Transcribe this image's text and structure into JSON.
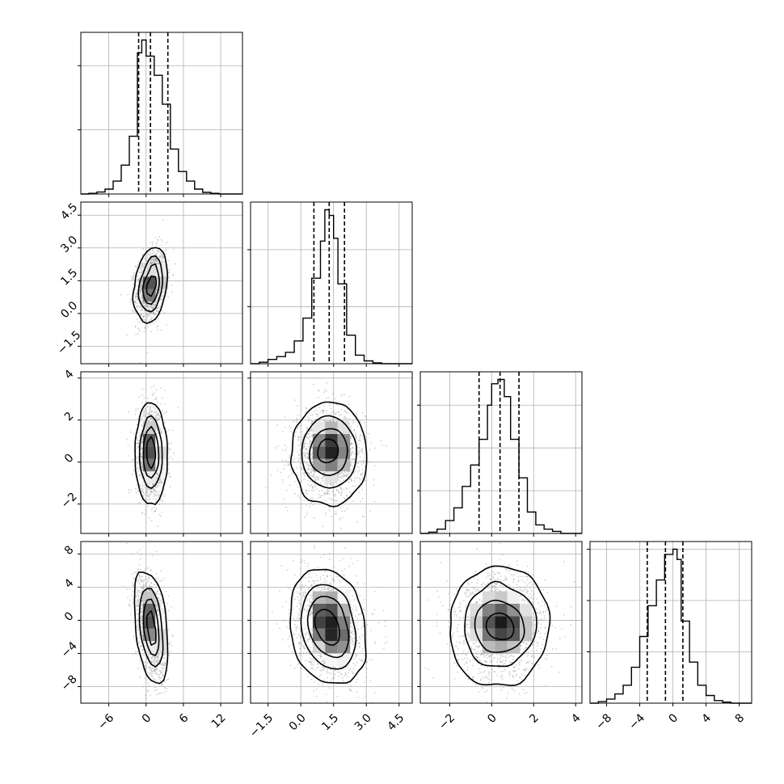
{
  "chart_data": {
    "type": "corner",
    "n_params": 4,
    "grid": true,
    "colors": {
      "line": "#000000",
      "grid": "#b0b0b0",
      "points": "#9a9a9a"
    },
    "params": [
      {
        "index": 0,
        "range": [
          -10.5,
          15.5
        ],
        "ticks": [
          -6,
          0,
          6,
          12
        ],
        "tick_labels": [
          "−6",
          "0",
          "6",
          "12"
        ],
        "quantiles": [
          -1.2,
          0.7,
          3.5
        ],
        "center": [
          0.8,
          1.2
        ],
        "hist_bins": [
          -10.5,
          -9.2,
          -7.9,
          -6.6,
          -5.3,
          -4.0,
          -2.7,
          -1.4,
          -0.7,
          0.0,
          1.3,
          2.6,
          3.9,
          5.2,
          6.5,
          7.8,
          9.1,
          10.4,
          11.7,
          13.0,
          15.5
        ],
        "hist_heights": [
          0,
          0.2,
          0.6,
          1.5,
          4,
          9,
          18,
          44,
          48,
          43,
          37,
          28,
          14,
          7,
          4,
          1.5,
          0.5,
          0.2,
          0,
          0
        ],
        "hist_ticks": [
          20,
          40
        ]
      },
      {
        "index": 1,
        "range": [
          -2.3,
          5.1
        ],
        "ticks": [
          -1.5,
          0.0,
          1.5,
          3.0,
          4.5
        ],
        "tick_labels": [
          "−1.5",
          "0.0",
          "1.5",
          "3.0",
          "4.5"
        ],
        "quantiles": [
          0.6,
          1.3,
          2.0
        ],
        "center": [
          1.3,
          0.8
        ],
        "hist_bins": [
          -2.3,
          -1.9,
          -1.5,
          -1.1,
          -0.7,
          -0.3,
          0.1,
          0.5,
          0.9,
          1.1,
          1.3,
          1.5,
          1.7,
          2.1,
          2.5,
          2.9,
          3.3,
          3.7,
          4.1,
          4.5,
          5.1
        ],
        "hist_heights": [
          0,
          0.5,
          1.5,
          2.5,
          4,
          8,
          16,
          30,
          43,
          54,
          52,
          44,
          28,
          10,
          3,
          1,
          0.3,
          0,
          0,
          0
        ],
        "hist_ticks": [
          20,
          40
        ]
      },
      {
        "index": 2,
        "range": [
          -3.4,
          4.3
        ],
        "ticks": [
          -2,
          0,
          2,
          4
        ],
        "tick_labels": [
          "−2",
          "0",
          "2",
          "4"
        ],
        "quantiles": [
          -0.6,
          0.4,
          1.3
        ],
        "center": [
          0.4,
          1.1
        ],
        "hist_bins": [
          -3.4,
          -3.0,
          -2.6,
          -2.2,
          -1.8,
          -1.4,
          -1.0,
          -0.6,
          -0.2,
          0.0,
          0.3,
          0.6,
          0.9,
          1.3,
          1.7,
          2.1,
          2.5,
          2.9,
          3.3,
          3.7,
          4.3
        ],
        "hist_heights": [
          0,
          0.3,
          1,
          3,
          6,
          11,
          16,
          22,
          30,
          35,
          36,
          32,
          22,
          13,
          5,
          2,
          1,
          0.5,
          0,
          0
        ],
        "hist_ticks": [
          10,
          20,
          30
        ]
      },
      {
        "index": 3,
        "range": [
          -10.0,
          9.5
        ],
        "ticks": [
          -8,
          -4,
          0,
          4,
          8
        ],
        "tick_labels": [
          "−8",
          "−4",
          "0",
          "4",
          "8"
        ],
        "quantiles": [
          -3.1,
          -0.9,
          1.2
        ],
        "center": [
          -0.8,
          3.2
        ],
        "hist_bins": [
          -10.0,
          -9.0,
          -8.0,
          -7.0,
          -6.0,
          -5.0,
          -4.0,
          -3.0,
          -2.0,
          -1.0,
          0.0,
          0.5,
          1.0,
          2.0,
          3.0,
          4.0,
          5.0,
          6.0,
          7.0,
          8.0,
          9.5
        ],
        "hist_heights": [
          0,
          0.3,
          0.8,
          1.8,
          3.5,
          7,
          13,
          19,
          24,
          29,
          30,
          28,
          16,
          8,
          3.5,
          1.5,
          0.5,
          0.2,
          0,
          0
        ],
        "hist_ticks": [
          10,
          20,
          30
        ]
      }
    ],
    "pairs": [
      {
        "row": 1,
        "col": 0,
        "corr": 0.25,
        "peak_offset": [
          -1.0,
          0.35
        ],
        "tail": [
          -0.3,
          -0.55
        ]
      },
      {
        "row": 2,
        "col": 0,
        "corr": -0.05,
        "peak_offset": [
          -0.7,
          0.15
        ],
        "tail": [
          0.1,
          0.0
        ]
      },
      {
        "row": 2,
        "col": 1,
        "corr": 0.0,
        "peak_offset": [
          0.05,
          0.0
        ],
        "tail": [
          0.0,
          0.0
        ]
      },
      {
        "row": 3,
        "col": 0,
        "corr": -0.35,
        "peak_offset": [
          -0.9,
          0.55
        ],
        "tail": [
          0.5,
          -0.2
        ]
      },
      {
        "row": 3,
        "col": 1,
        "corr": -0.15,
        "peak_offset": [
          0.05,
          0.05
        ],
        "tail": [
          0.0,
          0.0
        ]
      },
      {
        "row": 3,
        "col": 2,
        "corr": 0.0,
        "peak_offset": [
          0.0,
          0.05
        ],
        "tail": [
          0.0,
          0.0
        ]
      }
    ]
  }
}
